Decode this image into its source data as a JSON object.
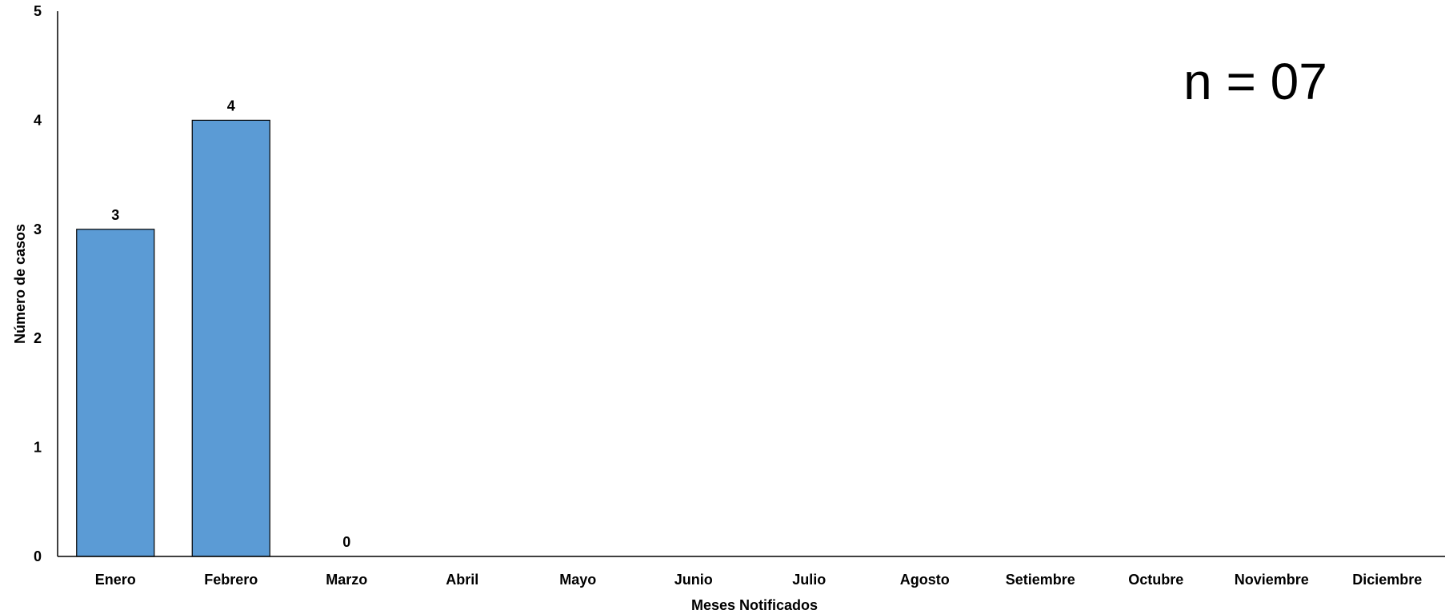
{
  "chart_data": {
    "type": "bar",
    "categories": [
      "Enero",
      "Febrero",
      "Marzo",
      "Abril",
      "Mayo",
      "Junio",
      "Julio",
      "Agosto",
      "Setiembre",
      "Octubre",
      "Noviembre",
      "Diciembre"
    ],
    "values": [
      3,
      4,
      0,
      null,
      null,
      null,
      null,
      null,
      null,
      null,
      null,
      null
    ],
    "data_labels": [
      "3",
      "4",
      "0",
      "",
      "",
      "",
      "",
      "",
      "",
      "",
      "",
      ""
    ],
    "xlabel": "Meses Notificados",
    "ylabel": "Número de casos",
    "ylim": [
      0,
      5
    ],
    "yticks": [
      0,
      1,
      2,
      3,
      4,
      5
    ],
    "annotation": "n = 07",
    "grid": false,
    "legend": "none",
    "colors": {
      "bar_fill": "#5b9bd5",
      "bar_stroke": "#000000",
      "axis": "#000000"
    }
  }
}
